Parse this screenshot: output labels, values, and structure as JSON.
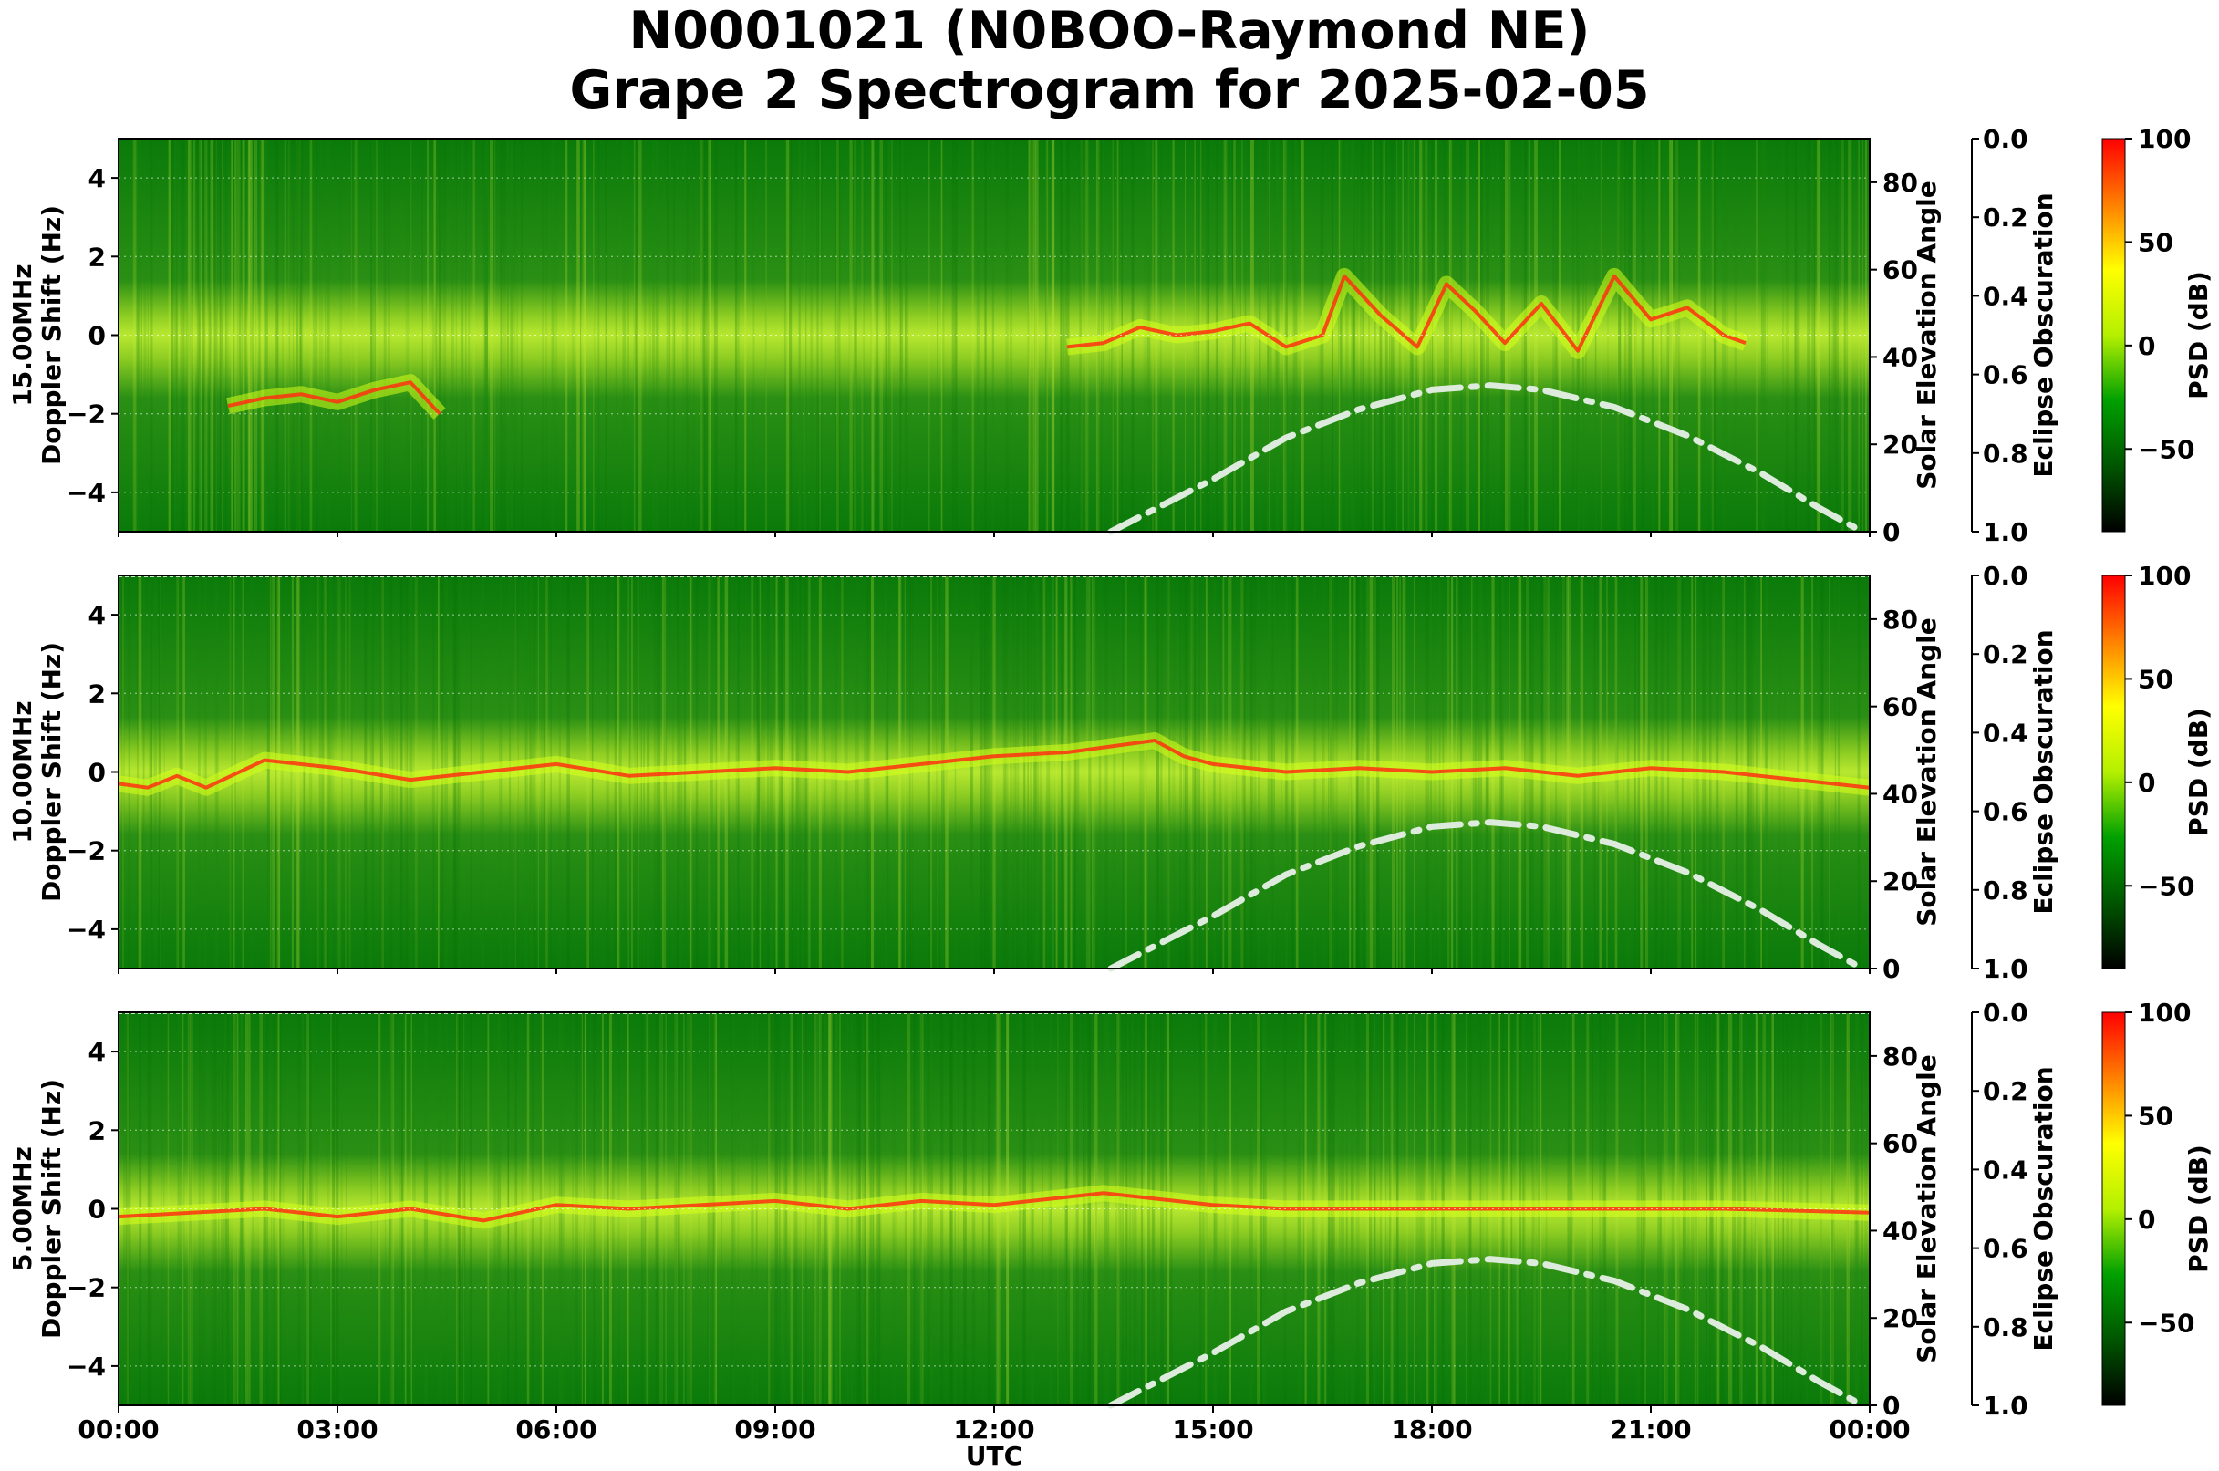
{
  "title_lines": [
    "N0001021 (N0BOO-Raymond NE)",
    "Grape 2 Spectrogram for 2025-02-05"
  ],
  "colors": {
    "spectrogram_low": "#0a7a0a",
    "spectrogram_mid": "#d6ff1a",
    "spectrogram_high": "#ff3010",
    "elevation_curve": "#dcebdc",
    "colorbar_stops": [
      "#000000",
      "#005500",
      "#00a000",
      "#b4f000",
      "#ffff00",
      "#ff8000",
      "#ff0000"
    ]
  },
  "chart_data": [
    {
      "type": "heatmap",
      "band_label": "15.00MHz",
      "ylabel": "Doppler Shift (Hz)",
      "ylim": [
        -5,
        5
      ],
      "yticks": [
        4,
        2,
        0,
        -2,
        -4
      ],
      "y_tick_labels": [
        "4",
        "2",
        "0",
        "−2",
        "−4"
      ],
      "x_range_hours": [
        0,
        24
      ],
      "right_axis_1": {
        "label": "Solar Elevation Angle",
        "range": [
          0,
          90
        ],
        "ticks": [
          "0",
          "20",
          "40",
          "60",
          "80"
        ]
      },
      "right_axis_2": {
        "label": "Eclipse Obscuration",
        "range": [
          0.0,
          1.0
        ],
        "inverted": true,
        "ticks": [
          "0.0",
          "0.2",
          "0.4",
          "0.6",
          "0.8",
          "1.0"
        ]
      },
      "colorbar": {
        "label": "PSD (dB)",
        "range": [
          -90,
          100
        ],
        "ticks": [
          "100",
          "50",
          "0",
          "−50"
        ]
      },
      "solar_elevation": {
        "x_hours": [
          13.6,
          15,
          16,
          17,
          18,
          18.8,
          19.5,
          20.5,
          21.5,
          22.5,
          23.3,
          23.9
        ],
        "y_deg": [
          0,
          12,
          21.5,
          28,
          32.5,
          33.5,
          32.5,
          28.5,
          22,
          13.5,
          5.5,
          0
        ]
      },
      "doppler_traces": [
        {
          "x_hours": [
            1.5,
            2.0,
            2.5,
            3.0,
            3.5,
            4.0,
            4.4
          ],
          "y_hz": [
            -1.8,
            -1.6,
            -1.5,
            -1.7,
            -1.4,
            -1.2,
            -2.0
          ]
        },
        {
          "x_hours": [
            13.0,
            13.5,
            14.0,
            14.5,
            15.0,
            15.5,
            16.0,
            16.5,
            16.8,
            17.3,
            17.8,
            18.2,
            18.6,
            19.0,
            19.5,
            20.0,
            20.5,
            21.0,
            21.5,
            22.0,
            22.3
          ],
          "y_hz": [
            -0.3,
            -0.2,
            0.2,
            0.0,
            0.1,
            0.3,
            -0.3,
            0.0,
            1.5,
            0.5,
            -0.3,
            1.3,
            0.6,
            -0.2,
            0.8,
            -0.4,
            1.5,
            0.4,
            0.7,
            0.0,
            -0.2
          ]
        }
      ]
    },
    {
      "type": "heatmap",
      "band_label": "10.00MHz",
      "ylabel": "Doppler Shift (Hz)",
      "ylim": [
        -5,
        5
      ],
      "yticks": [
        4,
        2,
        0,
        -2,
        -4
      ],
      "y_tick_labels": [
        "4",
        "2",
        "0",
        "−2",
        "−4"
      ],
      "x_range_hours": [
        0,
        24
      ],
      "right_axis_1": {
        "label": "Solar Elevation Angle",
        "range": [
          0,
          90
        ],
        "ticks": [
          "0",
          "20",
          "40",
          "60",
          "80"
        ]
      },
      "right_axis_2": {
        "label": "Eclipse Obscuration",
        "range": [
          0.0,
          1.0
        ],
        "inverted": true,
        "ticks": [
          "0.0",
          "0.2",
          "0.4",
          "0.6",
          "0.8",
          "1.0"
        ]
      },
      "colorbar": {
        "label": "PSD (dB)",
        "range": [
          -90,
          100
        ],
        "ticks": [
          "100",
          "50",
          "0",
          "−50"
        ]
      },
      "solar_elevation": {
        "x_hours": [
          13.6,
          15,
          16,
          17,
          18,
          18.8,
          19.5,
          20.5,
          21.5,
          22.5,
          23.3,
          23.9
        ],
        "y_deg": [
          0,
          12,
          21.5,
          28,
          32.5,
          33.5,
          32.5,
          28.5,
          22,
          13.5,
          5.5,
          0
        ]
      },
      "doppler_traces": [
        {
          "x_hours": [
            0,
            0.4,
            0.8,
            1.2,
            2,
            3,
            4,
            5,
            6,
            7,
            8,
            9,
            10,
            11,
            12,
            13,
            14.2,
            14.6,
            15,
            16,
            17,
            18,
            19,
            20,
            21,
            22,
            23,
            24
          ],
          "y_hz": [
            -0.3,
            -0.4,
            -0.1,
            -0.4,
            0.3,
            0.1,
            -0.2,
            0.0,
            0.2,
            -0.1,
            0.0,
            0.1,
            0.0,
            0.2,
            0.4,
            0.5,
            0.8,
            0.4,
            0.2,
            0.0,
            0.1,
            0.0,
            0.1,
            -0.1,
            0.1,
            0.0,
            -0.2,
            -0.4
          ]
        }
      ]
    },
    {
      "type": "heatmap",
      "band_label": "5.00MHz",
      "ylabel": "Doppler Shift (Hz)",
      "ylim": [
        -5,
        5
      ],
      "yticks": [
        4,
        2,
        0,
        -2,
        -4
      ],
      "y_tick_labels": [
        "4",
        "2",
        "0",
        "−2",
        "−4"
      ],
      "x_range_hours": [
        0,
        24
      ],
      "xlabel": "UTC",
      "xtick_labels": [
        "00:00",
        "03:00",
        "06:00",
        "09:00",
        "12:00",
        "15:00",
        "18:00",
        "21:00",
        "00:00"
      ],
      "right_axis_1": {
        "label": "Solar Elevation Angle",
        "range": [
          0,
          90
        ],
        "ticks": [
          "0",
          "20",
          "40",
          "60",
          "80"
        ]
      },
      "right_axis_2": {
        "label": "Eclipse Obscuration",
        "range": [
          0.0,
          1.0
        ],
        "inverted": true,
        "ticks": [
          "0.0",
          "0.2",
          "0.4",
          "0.6",
          "0.8",
          "1.0"
        ]
      },
      "colorbar": {
        "label": "PSD (dB)",
        "range": [
          -90,
          100
        ],
        "ticks": [
          "100",
          "50",
          "0",
          "−50"
        ]
      },
      "solar_elevation": {
        "x_hours": [
          13.6,
          15,
          16,
          17,
          18,
          18.8,
          19.5,
          20.5,
          21.5,
          22.5,
          23.3,
          23.9
        ],
        "y_deg": [
          0,
          12,
          21.5,
          28,
          32.5,
          33.5,
          32.5,
          28.5,
          22,
          13.5,
          5.5,
          0
        ]
      },
      "doppler_traces": [
        {
          "x_hours": [
            0,
            1,
            2,
            3,
            4,
            5,
            6,
            7,
            8,
            9,
            10,
            11,
            12,
            13,
            13.5,
            14,
            15,
            16,
            18,
            20,
            22,
            24
          ],
          "y_hz": [
            -0.2,
            -0.1,
            0.0,
            -0.2,
            0.0,
            -0.3,
            0.1,
            0.0,
            0.1,
            0.2,
            0.0,
            0.2,
            0.1,
            0.3,
            0.4,
            0.3,
            0.1,
            0.0,
            0.0,
            0.0,
            0.0,
            -0.1
          ]
        }
      ]
    }
  ]
}
